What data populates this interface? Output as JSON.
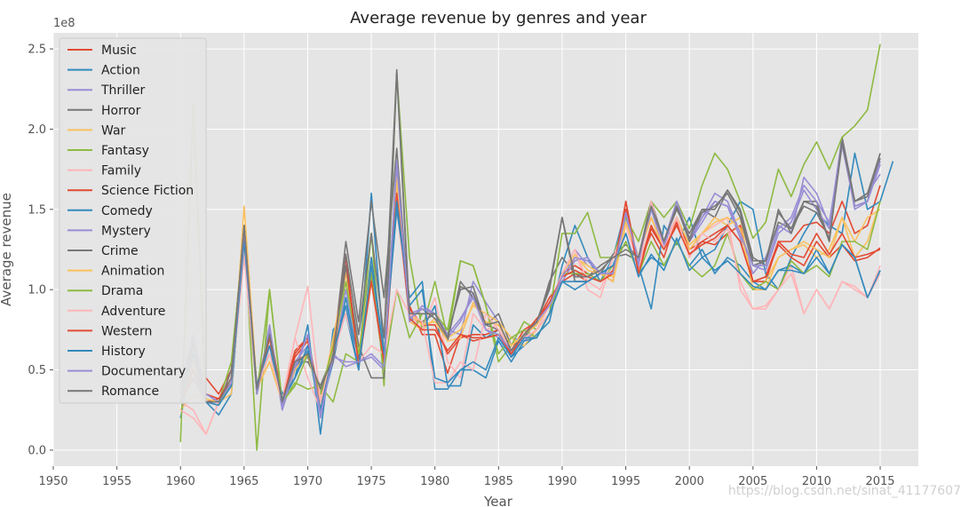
{
  "chart_data": {
    "type": "line",
    "title": "Average revenue by genres and year",
    "xlabel": "Year",
    "ylabel": "Average revenue",
    "y_offset_text": "1e8",
    "xlim": [
      1950,
      2018
    ],
    "ylim": [
      -0.1,
      2.6
    ],
    "y_scale": 100000000.0,
    "xticks": [
      1950,
      1955,
      1960,
      1965,
      1970,
      1975,
      1980,
      1985,
      1990,
      1995,
      2000,
      2005,
      2010,
      2015
    ],
    "yticks": [
      0.0,
      0.5,
      1.0,
      1.5,
      2.0,
      2.5
    ],
    "ytick_labels": [
      "0.0",
      "0.5",
      "1.0",
      "1.5",
      "2.0",
      "2.5"
    ],
    "grid": true,
    "legend_position": "upper-left",
    "watermark": "https://blog.csdn.net/sinat_41177607",
    "x_start": 1960,
    "series": [
      {
        "name": "Music",
        "color": "#E24A33",
        "values": [
          0.35,
          0.55,
          0.45,
          0.35,
          0.5,
          1.4,
          0.35,
          0.75,
          0.32,
          0.62,
          0.7,
          0.3,
          0.65,
          1.2,
          0.55,
          1.1,
          0.5,
          1.6,
          0.9,
          0.72,
          0.72,
          0.48,
          0.72,
          0.68,
          0.7,
          0.72,
          0.62,
          0.75,
          0.8,
          0.95,
          1.05,
          1.1,
          1.05,
          1.1,
          1.05,
          1.55,
          1.15,
          1.35,
          1.2,
          1.45,
          1.25,
          1.3,
          1.28,
          1.35,
          1.4,
          1.05,
          1.05,
          1.3,
          1.3,
          1.4,
          1.42,
          1.35,
          1.55,
          1.35,
          1.4,
          1.65
        ]
      },
      {
        "name": "Action",
        "color": "#348ABD",
        "values": [
          0.2,
          0.6,
          0.3,
          0.22,
          0.35,
          1.3,
          0.4,
          0.7,
          0.3,
          0.45,
          0.78,
          0.1,
          0.75,
          0.85,
          0.5,
          1.6,
          0.6,
          1.55,
          0.82,
          0.75,
          0.9,
          0.4,
          0.4,
          0.78,
          0.7,
          0.75,
          0.58,
          0.65,
          0.72,
          0.8,
          1.15,
          1.4,
          1.2,
          1.05,
          1.2,
          1.5,
          1.15,
          0.88,
          1.4,
          1.28,
          1.45,
          1.2,
          1.25,
          1.4,
          1.55,
          1.5,
          1.1,
          1.0,
          1.2,
          1.35,
          1.48,
          1.4,
          1.35,
          1.85,
          1.5,
          1.55,
          1.8
        ]
      },
      {
        "name": "Thriller",
        "color": "#988ED5",
        "values": [
          0.35,
          0.6,
          0.35,
          0.3,
          0.45,
          1.3,
          0.35,
          0.78,
          0.25,
          0.55,
          0.65,
          0.3,
          0.6,
          1.0,
          0.6,
          1.15,
          0.6,
          1.75,
          0.85,
          0.88,
          0.85,
          0.75,
          0.72,
          1.05,
          0.92,
          0.8,
          0.7,
          0.68,
          0.75,
          0.85,
          1.1,
          1.25,
          1.15,
          1.1,
          1.1,
          1.45,
          1.2,
          1.55,
          1.3,
          1.55,
          1.3,
          1.45,
          1.6,
          1.55,
          1.35,
          1.1,
          1.2,
          1.4,
          1.35,
          1.7,
          1.6,
          1.4,
          1.95,
          1.55,
          1.6,
          1.72
        ]
      },
      {
        "name": "Horror",
        "color": "#777777",
        "values": [
          0.3,
          0.65,
          0.3,
          0.28,
          0.5,
          1.35,
          0.4,
          0.72,
          0.3,
          0.55,
          0.55,
          0.4,
          0.6,
          1.3,
          0.8,
          1.55,
          0.95,
          1.88,
          0.82,
          0.8,
          0.85,
          0.72,
          1.0,
          1.02,
          0.78,
          0.85,
          0.65,
          0.72,
          0.78,
          1.05,
          1.2,
          1.1,
          1.08,
          1.15,
          1.2,
          1.22,
          1.18,
          1.52,
          1.3,
          1.5,
          1.35,
          1.5,
          1.45,
          1.62,
          1.5,
          1.2,
          1.15,
          1.5,
          1.35,
          1.55,
          1.55,
          1.3,
          1.95,
          1.55,
          1.58,
          1.85
        ]
      },
      {
        "name": "War",
        "color": "#FBC15E",
        "values": [
          0.25,
          0.35,
          0.3,
          0.3,
          0.35,
          1.52,
          0.4,
          0.55,
          0.3,
          0.5,
          0.6,
          0.3,
          0.7,
          1.1,
          0.6,
          1.2,
          0.6,
          1.7,
          0.8,
          0.75,
          0.82,
          0.7,
          0.75,
          0.9,
          0.85,
          0.8,
          0.7,
          0.65,
          0.75,
          0.85,
          1.05,
          1.2,
          1.15,
          1.1,
          1.05,
          1.4,
          1.2,
          1.45,
          1.25,
          1.4,
          1.25,
          1.35,
          1.45,
          1.4,
          1.45,
          1.0,
          1.0,
          1.2,
          1.25,
          1.28,
          1.2,
          1.25,
          1.45,
          1.3,
          1.45,
          1.5
        ]
      },
      {
        "name": "Fantasy",
        "color": "#8EBA42",
        "values": [
          0.05,
          2.15,
          0.3,
          0.3,
          0.55,
          1.35,
          0.0,
          1.0,
          0.3,
          0.42,
          0.38,
          0.4,
          0.3,
          0.6,
          0.55,
          1.35,
          0.4,
          2.35,
          1.2,
          0.75,
          1.05,
          0.7,
          1.18,
          1.15,
          0.9,
          0.55,
          0.65,
          0.8,
          0.75,
          0.85,
          1.35,
          1.35,
          1.48,
          1.2,
          1.2,
          1.45,
          1.3,
          1.55,
          1.45,
          1.55,
          1.38,
          1.65,
          1.85,
          1.75,
          1.55,
          1.32,
          1.42,
          1.75,
          1.58,
          1.78,
          1.92,
          1.75,
          1.95,
          2.02,
          2.12,
          2.53
        ]
      },
      {
        "name": "Family",
        "color": "#FFB5B8",
        "values": [
          0.25,
          0.2,
          0.1,
          0.3,
          0.4,
          1.2,
          0.35,
          0.65,
          0.32,
          0.7,
          0.45,
          0.25,
          0.55,
          0.9,
          0.55,
          1.15,
          0.6,
          1.5,
          0.85,
          0.75,
          0.95,
          0.55,
          0.45,
          0.85,
          0.75,
          0.78,
          0.62,
          0.7,
          0.75,
          0.85,
          1.1,
          1.25,
          1.0,
          0.95,
          1.2,
          1.4,
          1.15,
          1.55,
          1.3,
          1.45,
          1.2,
          1.35,
          1.4,
          1.45,
          1.0,
          0.88,
          0.9,
          1.0,
          1.15,
          0.85,
          1.0,
          0.88,
          1.05,
          1.0,
          0.95,
          1.1
        ]
      },
      {
        "name": "Science Fiction",
        "color": "#E24A33",
        "values": [
          0.3,
          0.45,
          0.3,
          0.32,
          0.45,
          1.38,
          0.38,
          0.72,
          0.3,
          0.58,
          0.68,
          0.3,
          0.55,
          1.15,
          0.58,
          1.08,
          0.58,
          1.62,
          0.88,
          0.78,
          0.78,
          0.6,
          0.7,
          0.72,
          0.72,
          0.75,
          0.6,
          0.72,
          0.82,
          0.9,
          1.1,
          1.15,
          1.1,
          1.05,
          1.12,
          1.5,
          1.12,
          1.4,
          1.25,
          1.42,
          1.22,
          1.3,
          1.35,
          1.4,
          1.3,
          1.05,
          1.08,
          1.28,
          1.2,
          1.15,
          1.3,
          1.2,
          1.28,
          1.18,
          1.2,
          1.26
        ]
      },
      {
        "name": "Comedy",
        "color": "#348ABD",
        "values": [
          0.3,
          0.5,
          0.3,
          0.3,
          0.4,
          1.3,
          0.4,
          0.6,
          0.35,
          0.45,
          0.62,
          0.25,
          0.55,
          0.95,
          0.55,
          1.2,
          0.6,
          1.5,
          0.95,
          1.05,
          0.38,
          0.38,
          0.5,
          0.5,
          0.45,
          0.68,
          0.55,
          0.68,
          0.7,
          0.85,
          1.05,
          1.0,
          1.05,
          1.1,
          1.15,
          1.35,
          1.1,
          1.2,
          1.15,
          1.3,
          1.15,
          1.25,
          1.1,
          1.2,
          1.15,
          1.05,
          1.0,
          1.12,
          1.15,
          1.1,
          1.25,
          1.1,
          1.28,
          1.2,
          0.95,
          1.12
        ]
      },
      {
        "name": "Mystery",
        "color": "#988ED5",
        "values": [
          0.4,
          0.72,
          0.35,
          0.3,
          0.4,
          1.35,
          0.35,
          0.72,
          0.25,
          0.5,
          0.72,
          0.2,
          0.6,
          0.52,
          0.55,
          0.58,
          0.5,
          1.8,
          0.8,
          0.9,
          0.85,
          0.7,
          0.8,
          0.98,
          0.75,
          0.7,
          0.6,
          0.7,
          0.8,
          0.9,
          1.05,
          1.18,
          1.2,
          1.1,
          1.08,
          1.48,
          1.15,
          1.5,
          1.25,
          1.55,
          1.3,
          1.42,
          1.55,
          1.52,
          1.32,
          1.15,
          1.12,
          1.35,
          1.42,
          1.62,
          1.5,
          1.38,
          1.92,
          1.5,
          1.55,
          1.78
        ]
      },
      {
        "name": "Crime",
        "color": "#777777",
        "values": [
          0.35,
          0.7,
          0.3,
          0.3,
          0.45,
          1.4,
          0.35,
          0.7,
          0.3,
          0.55,
          0.58,
          0.35,
          0.55,
          1.15,
          0.65,
          0.45,
          0.45,
          2.35,
          0.82,
          0.88,
          0.82,
          0.68,
          1.05,
          0.95,
          0.78,
          0.75,
          0.58,
          0.7,
          0.8,
          1.0,
          1.45,
          1.05,
          1.05,
          1.1,
          1.22,
          1.28,
          1.2,
          1.55,
          1.3,
          1.52,
          1.3,
          1.48,
          1.52,
          1.6,
          1.45,
          1.15,
          1.18,
          1.42,
          1.38,
          1.52,
          1.48,
          1.32,
          1.9,
          1.52,
          1.55,
          1.82
        ]
      },
      {
        "name": "Animation",
        "color": "#FBC15E",
        "values": [
          0.3,
          0.55,
          0.32,
          0.3,
          0.4,
          1.38,
          0.38,
          0.55,
          0.3,
          0.5,
          0.6,
          0.3,
          0.62,
          1.05,
          0.6,
          1.15,
          0.6,
          1.65,
          0.85,
          0.78,
          0.8,
          0.68,
          0.7,
          0.92,
          0.8,
          0.78,
          0.65,
          0.72,
          0.78,
          0.9,
          1.1,
          1.22,
          1.12,
          1.1,
          1.08,
          1.42,
          1.2,
          1.45,
          1.25,
          1.45,
          1.28,
          1.35,
          1.42,
          1.45,
          1.38,
          1.0,
          1.05,
          1.2,
          1.25,
          1.3,
          1.25,
          1.2,
          1.45,
          1.2,
          1.3,
          1.55
        ]
      },
      {
        "name": "Drama",
        "color": "#8EBA42",
        "values": [
          0.3,
          0.6,
          0.3,
          0.3,
          0.4,
          1.3,
          0.35,
          1.0,
          0.3,
          0.4,
          0.6,
          0.35,
          0.65,
          1.05,
          0.6,
          1.1,
          0.5,
          1.0,
          0.7,
          0.85,
          0.85,
          0.75,
          1.18,
          1.15,
          0.9,
          0.6,
          0.7,
          0.75,
          0.7,
          0.85,
          1.1,
          1.1,
          1.1,
          1.05,
          1.15,
          1.3,
          1.1,
          1.3,
          1.15,
          1.3,
          1.15,
          1.08,
          1.15,
          1.35,
          1.1,
          1.0,
          1.05,
          1.0,
          1.18,
          1.1,
          1.15,
          1.08,
          1.3,
          1.3,
          1.25,
          1.55
        ]
      },
      {
        "name": "Adventure",
        "color": "#FFB5B8",
        "values": [
          0.3,
          0.25,
          0.1,
          0.3,
          0.45,
          1.25,
          0.4,
          0.6,
          0.3,
          0.7,
          1.02,
          0.3,
          0.6,
          0.85,
          0.55,
          0.65,
          0.6,
          1.0,
          0.85,
          0.8,
          0.42,
          0.42,
          0.55,
          0.5,
          0.85,
          0.75,
          0.62,
          0.7,
          0.75,
          0.9,
          1.1,
          1.25,
          1.05,
          1.0,
          1.2,
          1.35,
          1.1,
          1.55,
          1.25,
          1.45,
          1.2,
          1.35,
          1.3,
          1.38,
          1.05,
          0.88,
          0.88,
          1.0,
          1.1,
          0.85,
          1.0,
          0.88,
          1.05,
          1.02,
          0.95,
          1.15
        ]
      },
      {
        "name": "Western",
        "color": "#E24A33",
        "values": [
          0.3,
          0.5,
          0.35,
          0.32,
          0.42,
          1.35,
          0.38,
          0.7,
          0.3,
          0.6,
          0.7,
          0.25,
          0.6,
          1.22,
          0.52,
          1.05,
          0.55,
          1.6,
          0.82,
          0.75,
          0.75,
          0.62,
          0.72,
          0.7,
          0.7,
          0.72,
          0.6,
          0.72,
          0.8,
          0.92,
          1.08,
          1.12,
          1.08,
          1.05,
          1.1,
          1.55,
          1.1,
          1.38,
          1.25,
          1.4,
          1.22,
          1.28,
          1.32,
          1.4,
          1.3,
          1.05,
          1.08,
          1.3,
          1.22,
          1.2,
          1.35,
          1.22,
          1.35,
          1.2,
          1.22,
          1.25
        ]
      },
      {
        "name": "History",
        "color": "#348ABD",
        "values": [
          0.3,
          0.6,
          0.3,
          0.28,
          0.4,
          1.3,
          0.4,
          0.65,
          0.32,
          0.45,
          0.65,
          0.25,
          0.6,
          0.9,
          0.5,
          1.15,
          0.6,
          1.55,
          0.9,
          1.0,
          0.45,
          0.42,
          0.5,
          0.55,
          0.5,
          0.7,
          0.58,
          0.7,
          0.7,
          0.85,
          1.05,
          1.05,
          1.05,
          1.1,
          1.15,
          1.35,
          1.08,
          1.22,
          1.12,
          1.32,
          1.12,
          1.2,
          1.12,
          1.18,
          1.1,
          1.02,
          1.0,
          1.12,
          1.12,
          1.1,
          1.2,
          1.1,
          1.28,
          1.2,
          0.95,
          1.12
        ]
      },
      {
        "name": "Documentary",
        "color": "#988ED5",
        "values": [
          0.4,
          0.7,
          0.35,
          0.3,
          0.42,
          1.38,
          0.35,
          0.75,
          0.28,
          0.52,
          0.72,
          0.22,
          0.58,
          0.55,
          0.55,
          0.6,
          0.52,
          1.78,
          0.82,
          0.88,
          0.85,
          0.72,
          0.82,
          0.95,
          0.75,
          0.72,
          0.62,
          0.72,
          0.8,
          0.9,
          1.08,
          1.2,
          1.18,
          1.1,
          1.1,
          1.48,
          1.18,
          1.52,
          1.28,
          1.55,
          1.32,
          1.45,
          1.55,
          1.52,
          1.35,
          1.15,
          1.15,
          1.38,
          1.45,
          1.65,
          1.55,
          1.42,
          1.9,
          1.52,
          1.55,
          1.8
        ]
      },
      {
        "name": "Romance",
        "color": "#777777",
        "values": [
          0.35,
          0.68,
          0.3,
          0.3,
          0.45,
          1.4,
          0.38,
          0.72,
          0.3,
          0.55,
          0.6,
          0.38,
          0.58,
          1.22,
          0.72,
          1.35,
          0.7,
          2.37,
          0.85,
          0.85,
          0.85,
          0.7,
          1.02,
          0.98,
          0.78,
          0.8,
          0.62,
          0.72,
          0.8,
          1.02,
          1.45,
          1.08,
          1.08,
          1.12,
          1.2,
          1.25,
          1.2,
          1.52,
          1.3,
          1.52,
          1.32,
          1.5,
          1.5,
          1.62,
          1.48,
          1.18,
          1.18,
          1.48,
          1.38,
          1.55,
          1.52,
          1.3,
          1.92,
          1.55,
          1.6,
          1.85
        ]
      }
    ]
  }
}
